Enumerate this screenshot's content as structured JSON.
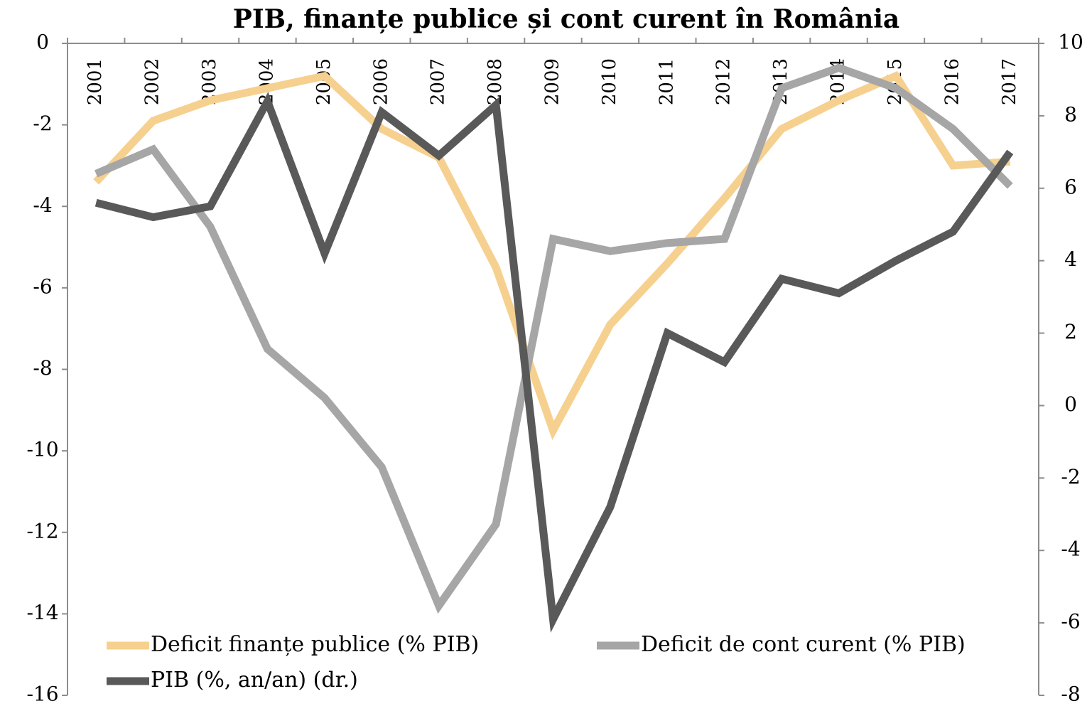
{
  "chart_data": {
    "type": "line",
    "title": "PIB, finanțe publice și cont curent în România",
    "categories": [
      "2001",
      "2002",
      "2003",
      "2004",
      "2005",
      "2006",
      "2007",
      "2008",
      "2009",
      "2010",
      "2011",
      "2012",
      "2013",
      "2014",
      "2015",
      "2016",
      "2017"
    ],
    "series": [
      {
        "name": "Deficit finanțe publice (% PIB)",
        "color": "#f6d08e",
        "axis": "y",
        "values": [
          -3.4,
          -1.9,
          -1.4,
          -1.1,
          -0.8,
          -2.1,
          -2.8,
          -5.5,
          -9.5,
          -6.9,
          -5.4,
          -3.8,
          -2.1,
          -1.4,
          -0.8,
          -3.0,
          -2.9
        ]
      },
      {
        "name": "Deficit de cont curent (% PIB)",
        "color": "#a6a6a6",
        "axis": "y",
        "values": [
          -3.2,
          -2.6,
          -4.5,
          -7.5,
          -8.7,
          -10.4,
          -13.8,
          -11.8,
          -4.8,
          -5.1,
          -4.9,
          -4.8,
          -1.1,
          -0.6,
          -1.1,
          -2.1,
          -3.5
        ]
      },
      {
        "name": "PIB (%, an/an) (dr.)",
        "color": "#595959",
        "axis": "y2",
        "values": [
          5.6,
          5.2,
          5.5,
          8.4,
          4.2,
          8.1,
          6.9,
          8.3,
          -5.9,
          -2.8,
          2.0,
          1.2,
          3.5,
          3.1,
          4.0,
          4.8,
          7.0
        ]
      }
    ],
    "ylim": [
      -16,
      0
    ],
    "yticks": [
      -16,
      -14,
      -12,
      -10,
      -8,
      -6,
      -4,
      -2,
      0
    ],
    "y2lim": [
      -8,
      10
    ],
    "y2ticks": [
      -8,
      -6,
      -4,
      -2,
      0,
      2,
      4,
      6,
      8,
      10
    ],
    "legend": "lower left"
  }
}
